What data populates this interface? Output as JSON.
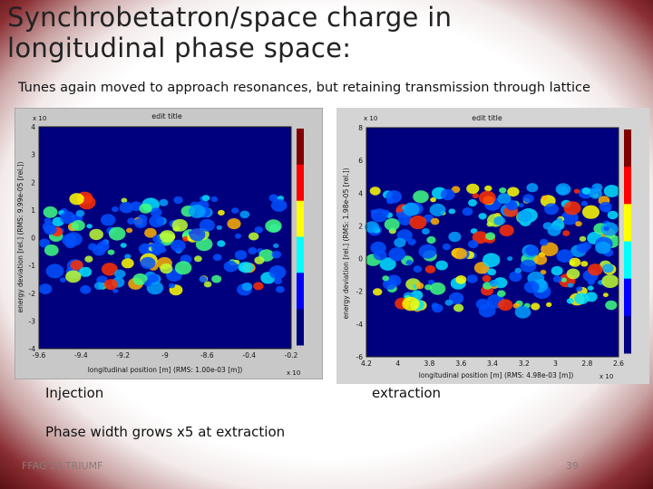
{
  "slide": {
    "title_line1": "Synchrobetatron/space charge in",
    "title_line2": "longitudinal phase space:",
    "subtitle": "Tunes again moved to approach resonances, but retaining transmission through lattice",
    "caption_injection": "Injection",
    "caption_extraction": "extraction",
    "note": "Phase width grows x5 at extraction",
    "footer_left": "FFAG'13 TRIUMF",
    "footer_right": "39"
  },
  "colors": {
    "background_frame": "#5a0f12",
    "plot_background": "#00007f",
    "hot": "#ff0000",
    "warm": "#ffff00"
  },
  "chart_data": [
    {
      "type": "heatmap",
      "title": "edit title",
      "xlabel": "longitudinal position [m] (RMS: 1.00e-03 [m])",
      "ylabel": "energy deviation [rel.] (RMS: 9.99e-05 [rel.])",
      "x_exponent": "x 10",
      "y_exponent": "x 10",
      "xticks": [
        "-9.6",
        "-9.4",
        "-9.2",
        "-9",
        "-8.6",
        "-0.4",
        "-0.2"
      ],
      "yticks": [
        "4",
        "3",
        "2",
        "1",
        "0",
        "-1",
        "-2",
        "-3",
        "-4"
      ],
      "ylim": [
        -4,
        4
      ],
      "colorbar": true
    },
    {
      "type": "heatmap",
      "title": "edit title",
      "xlabel": "longitudinal position [m] (RMS: 4.98e-03 [m])",
      "ylabel": "energy deviation [rel.] (RMS: 1.98e-05 [rel.])",
      "x_exponent": "x 10",
      "y_exponent": "x 10",
      "xticks": [
        "4.2",
        "4",
        "3.8",
        "3.6",
        "3.4",
        "3.2",
        "3",
        "2.8",
        "2.6"
      ],
      "yticks": [
        "8",
        "6",
        "4",
        "2",
        "0",
        "-2",
        "-4",
        "-6"
      ],
      "ylim": [
        -8,
        8
      ],
      "colorbar": true
    }
  ]
}
